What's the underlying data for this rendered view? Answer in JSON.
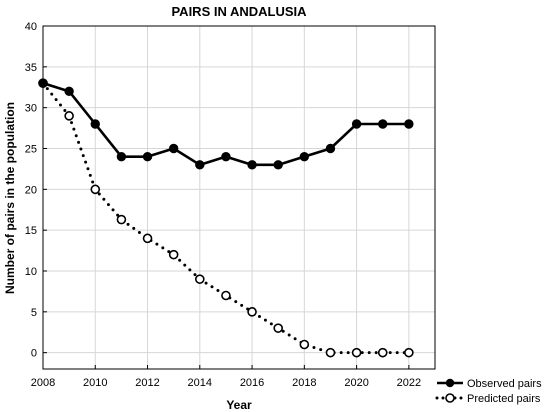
{
  "chart_data": {
    "type": "line",
    "title": "PAIRS IN ANDALUSIA",
    "xlabel": "Year",
    "ylabel": "Number of pairs in the population",
    "xlim": [
      2008,
      2023
    ],
    "ylim": [
      -2,
      40
    ],
    "x_ticks": [
      2008,
      2010,
      2012,
      2014,
      2016,
      2018,
      2020,
      2022
    ],
    "y_ticks": [
      0,
      5,
      10,
      15,
      20,
      25,
      30,
      35,
      40
    ],
    "grid": true,
    "legend_position": "bottom-right outside",
    "x": [
      2008,
      2009,
      2010,
      2011,
      2012,
      2013,
      2014,
      2015,
      2016,
      2017,
      2018,
      2019,
      2020,
      2021,
      2022
    ],
    "series": [
      {
        "name": "Observed pairs",
        "style": "solid",
        "marker": "filled-circle",
        "color": "#000000",
        "values": [
          33,
          32,
          28,
          24,
          24,
          25,
          23,
          24,
          23,
          23,
          24,
          25,
          28,
          28,
          28
        ]
      },
      {
        "name": "Predicted pairs",
        "style": "dotted",
        "marker": "open-circle",
        "color": "#000000",
        "values": [
          33,
          29,
          20,
          16.3,
          14,
          12,
          9,
          7,
          5,
          3,
          1,
          0,
          0,
          0,
          0
        ]
      }
    ]
  }
}
